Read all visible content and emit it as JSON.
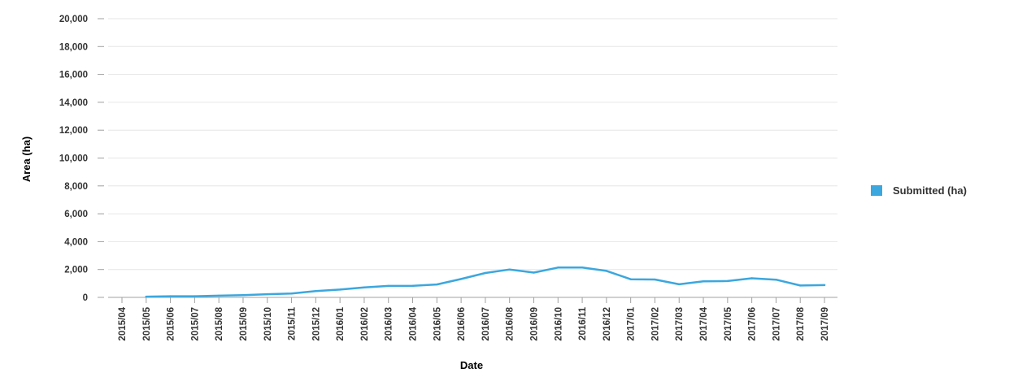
{
  "chart_data": {
    "type": "line",
    "title": "",
    "xlabel": "Date",
    "ylabel": "Area (ha)",
    "ylim": [
      0,
      20000
    ],
    "yticks": [
      0,
      2000,
      4000,
      6000,
      8000,
      10000,
      12000,
      14000,
      16000,
      18000,
      20000
    ],
    "ytick_labels": [
      "0",
      "2,000",
      "4,000",
      "6,000",
      "8,000",
      "10,000",
      "12,000",
      "14,000",
      "16,000",
      "18,000",
      "20,000"
    ],
    "categories": [
      "2015/04",
      "2015/05",
      "2015/06",
      "2015/07",
      "2015/08",
      "2015/09",
      "2015/10",
      "2015/11",
      "2015/12",
      "2016/01",
      "2016/02",
      "2016/03",
      "2016/04",
      "2016/05",
      "2016/06",
      "2016/07",
      "2016/08",
      "2016/09",
      "2016/10",
      "2016/11",
      "2016/12",
      "2017/01",
      "2017/02",
      "2017/03",
      "2017/04",
      "2017/05",
      "2017/06",
      "2017/07",
      "2017/08",
      "2017/09"
    ],
    "grid": true,
    "legend_position": "right",
    "series": [
      {
        "name": "Submitted (ha)",
        "color": "#3ba7de",
        "values": [
          null,
          50,
          80,
          80,
          120,
          160,
          230,
          280,
          450,
          560,
          720,
          820,
          830,
          930,
          1320,
          1750,
          2000,
          1780,
          2140,
          2140,
          1900,
          1300,
          1280,
          940,
          1150,
          1170,
          1370,
          1270,
          850,
          880
        ]
      }
    ]
  }
}
